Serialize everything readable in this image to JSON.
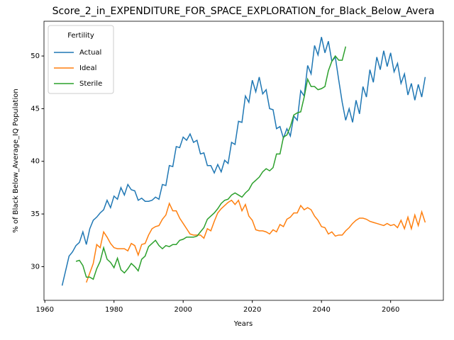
{
  "chart_data": {
    "type": "line",
    "title": "Score_2_in_EXPENDITURE_FOR_SPACE_EXPLORATION_for_Black_Below_Avera",
    "x_label": "Years",
    "y_label": "% of Black Below_Average_IQ Population",
    "legend_title": "Fertility",
    "legend": "upper left",
    "grid": false,
    "x": [
      1965,
      1966,
      1967,
      1968,
      1969,
      1970,
      1971,
      1972,
      1973,
      1974,
      1975,
      1976,
      1977,
      1978,
      1979,
      1980,
      1981,
      1982,
      1983,
      1984,
      1985,
      1986,
      1987,
      1988,
      1989,
      1990,
      1991,
      1992,
      1993,
      1994,
      1995,
      1996,
      1997,
      1998,
      1999,
      2000,
      2001,
      2002,
      2003,
      2004,
      2005,
      2006,
      2007,
      2008,
      2009,
      2010,
      2011,
      2012,
      2013,
      2014,
      2015,
      2016,
      2017,
      2018,
      2019,
      2020,
      2021,
      2022,
      2023,
      2024,
      2025,
      2026,
      2027,
      2028,
      2029,
      2030,
      2031,
      2032,
      2033,
      2034,
      2035,
      2036,
      2037,
      2038,
      2039,
      2040,
      2041,
      2042,
      2043,
      2044,
      2045,
      2046,
      2047,
      2048,
      2049,
      2050,
      2051,
      2052,
      2053,
      2054,
      2055,
      2056,
      2057,
      2058,
      2059,
      2060,
      2061,
      2062,
      2063,
      2064,
      2065,
      2066,
      2067,
      2068,
      2069,
      2070
    ],
    "series": [
      {
        "name": "Actual",
        "color": "#1f77b4",
        "values": [
          28.2,
          29.6,
          31.0,
          31.4,
          32.0,
          32.3,
          33.3,
          32.1,
          33.6,
          34.4,
          34.7,
          35.1,
          35.4,
          36.3,
          35.6,
          36.7,
          36.4,
          37.5,
          36.8,
          37.8,
          37.3,
          37.2,
          36.3,
          36.5,
          36.2,
          36.2,
          36.3,
          36.6,
          36.4,
          37.8,
          37.7,
          39.6,
          39.5,
          41.4,
          41.3,
          42.3,
          42.0,
          42.6,
          41.8,
          42.0,
          40.7,
          40.8,
          39.6,
          39.6,
          38.9,
          39.7,
          39.0,
          40.1,
          39.8,
          41.8,
          41.6,
          43.8,
          43.7,
          46.2,
          45.6,
          47.7,
          46.6,
          48.0,
          46.4,
          46.8,
          45.0,
          44.9,
          43.1,
          43.3,
          42.2,
          43.1,
          42.4,
          44.3,
          43.9,
          46.7,
          46.2,
          49.1,
          48.3,
          51.0,
          50.1,
          51.8,
          50.3,
          51.4,
          49.5,
          49.9,
          47.7,
          45.6,
          43.9,
          45.0,
          43.7,
          45.8,
          44.5,
          47.1,
          46.1,
          48.7,
          47.5,
          49.9,
          48.7,
          50.5,
          49.0,
          50.3,
          48.5,
          49.3,
          47.4,
          48.3,
          46.3,
          47.4,
          45.8,
          47.3,
          46.1,
          48.0
        ]
      },
      {
        "name": "Ideal",
        "color": "#ff7f0e",
        "values": [
          null,
          null,
          null,
          null,
          null,
          null,
          null,
          28.5,
          29.4,
          30.3,
          32.1,
          31.8,
          33.3,
          32.8,
          32.2,
          31.8,
          31.7,
          31.7,
          31.7,
          31.5,
          32.2,
          32.0,
          31.1,
          32.1,
          32.2,
          33.0,
          33.6,
          33.8,
          33.9,
          34.5,
          34.9,
          36.0,
          35.3,
          35.3,
          34.6,
          34.1,
          33.6,
          33.1,
          33.0,
          33.0,
          33.0,
          32.7,
          33.6,
          33.4,
          34.3,
          35.1,
          35.5,
          35.8,
          36.1,
          36.3,
          35.9,
          36.3,
          35.3,
          35.9,
          34.8,
          34.4,
          33.5,
          33.4,
          33.4,
          33.3,
          33.1,
          33.5,
          33.3,
          34.0,
          33.8,
          34.5,
          34.7,
          35.1,
          35.1,
          35.8,
          35.4,
          35.6,
          35.4,
          34.8,
          34.4,
          33.8,
          33.7,
          33.1,
          33.3,
          32.9,
          33.0,
          33.0,
          33.4,
          33.7,
          34.1,
          34.4,
          34.6,
          34.6,
          34.5,
          34.3,
          34.2,
          34.1,
          34.0,
          33.9,
          34.1,
          33.9,
          34.0,
          33.7,
          34.4,
          33.6,
          34.7,
          33.6,
          34.9,
          33.9,
          35.2,
          34.2
        ]
      },
      {
        "name": "Sterile",
        "color": "#2ca02c",
        "values": [
          null,
          null,
          null,
          null,
          30.5,
          30.6,
          30.1,
          29.0,
          29.0,
          28.8,
          29.8,
          30.5,
          31.8,
          30.7,
          30.4,
          29.9,
          30.8,
          29.7,
          29.4,
          29.8,
          30.3,
          30.0,
          29.6,
          30.7,
          31.0,
          31.9,
          32.2,
          32.5,
          32.0,
          31.7,
          32.0,
          31.9,
          32.1,
          32.1,
          32.5,
          32.6,
          32.8,
          32.8,
          32.8,
          32.9,
          33.3,
          33.7,
          34.5,
          34.8,
          35.1,
          35.5,
          36.0,
          36.3,
          36.4,
          36.8,
          37.0,
          36.8,
          36.6,
          37.0,
          37.3,
          37.9,
          38.2,
          38.5,
          39.0,
          39.3,
          39.1,
          39.4,
          40.7,
          40.7,
          42.3,
          42.5,
          43.3,
          44.4,
          44.6,
          44.7,
          46.1,
          47.8,
          47.1,
          47.1,
          46.8,
          46.9,
          47.1,
          48.6,
          49.5,
          50.0,
          49.6,
          49.6,
          50.9,
          null,
          null,
          null,
          null,
          null,
          null,
          null,
          null,
          null,
          null,
          null,
          null,
          null,
          null,
          null,
          null,
          null,
          null,
          null,
          null,
          null,
          null,
          null
        ]
      }
    ],
    "xlim": [
      1959.75,
      2075.25
    ],
    "xticks": [
      1960,
      1980,
      2000,
      2020,
      2040,
      2060
    ],
    "ylim": [
      26.8,
      53.3
    ],
    "yticks": [
      30,
      35,
      40,
      45,
      50
    ]
  }
}
